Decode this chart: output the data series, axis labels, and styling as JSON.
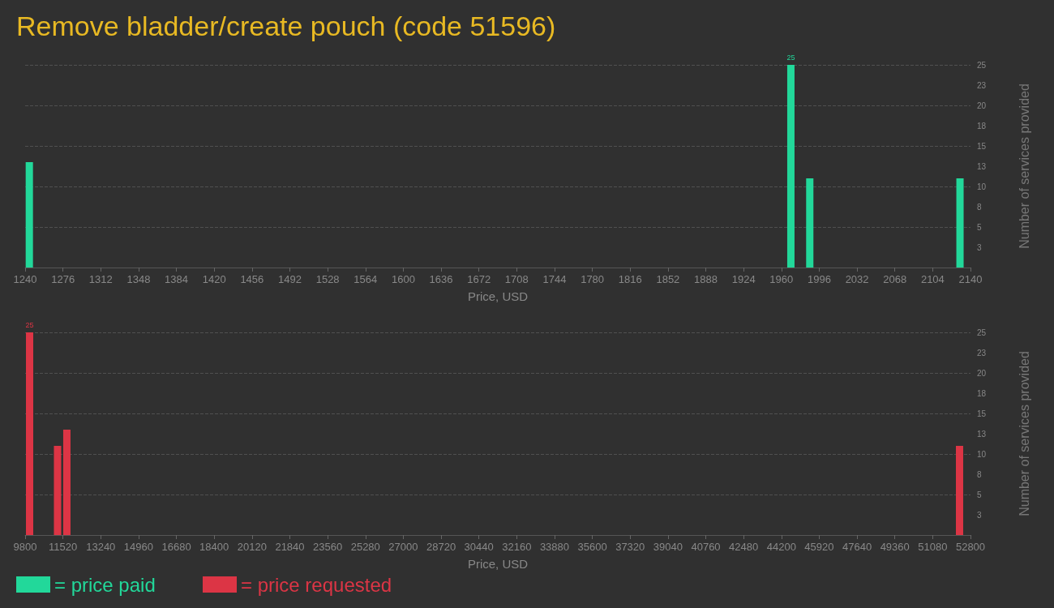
{
  "chart_data": [
    {
      "type": "bar",
      "title": "Remove bladder/create pouch (code 51596)",
      "xlabel": "Price, USD",
      "ylabel": "Number of services provided",
      "series": [
        {
          "name": "= price paid",
          "color": "#22d89a",
          "x": [
            1244,
            1969,
            1987,
            2130
          ],
          "values": [
            13,
            25,
            11,
            11
          ],
          "value_labels": [
            null,
            "25",
            null,
            null
          ]
        }
      ],
      "xlim": [
        1240,
        2140
      ],
      "xticks": [
        1240,
        1276,
        1312,
        1348,
        1384,
        1420,
        1456,
        1492,
        1528,
        1564,
        1600,
        1636,
        1672,
        1708,
        1744,
        1780,
        1816,
        1852,
        1888,
        1924,
        1960,
        1996,
        2032,
        2068,
        2104,
        2140
      ],
      "ylim": [
        0,
        25
      ],
      "yticks": [
        {
          "value": 2.5,
          "label": "3"
        },
        5,
        {
          "value": 7.5,
          "label": "8"
        },
        10,
        {
          "value": 12.5,
          "label": "13"
        },
        15,
        {
          "value": 17.5,
          "label": "18"
        },
        20,
        {
          "value": 22.5,
          "label": "23"
        },
        25
      ],
      "grid": "y",
      "legend": "bottom left"
    },
    {
      "type": "bar",
      "xlabel": "Price, USD",
      "ylabel": "Number of services provided",
      "series": [
        {
          "name": "= price requested",
          "color": "#dc3545",
          "x": [
            10003,
            11274,
            11698,
            52302
          ],
          "values": [
            25,
            11,
            13,
            11
          ],
          "value_labels": [
            "25",
            null,
            null,
            null
          ]
        }
      ],
      "xlim": [
        9800,
        52800
      ],
      "xticks": [
        9800,
        11520,
        13240,
        14960,
        16680,
        18400,
        20120,
        21840,
        23560,
        25280,
        27000,
        28720,
        30440,
        32160,
        33880,
        35600,
        37320,
        39040,
        40760,
        42480,
        44200,
        45920,
        47640,
        49360,
        51080,
        52800
      ],
      "ylim": [
        0,
        25
      ],
      "yticks": [
        {
          "value": 2.5,
          "label": "3"
        },
        5,
        {
          "value": 7.5,
          "label": "8"
        },
        10,
        {
          "value": 12.5,
          "label": "13"
        },
        15,
        {
          "value": 17.5,
          "label": "18"
        },
        20,
        {
          "value": 22.5,
          "label": "23"
        },
        25
      ],
      "grid": "y",
      "legend": "bottom left"
    }
  ]
}
